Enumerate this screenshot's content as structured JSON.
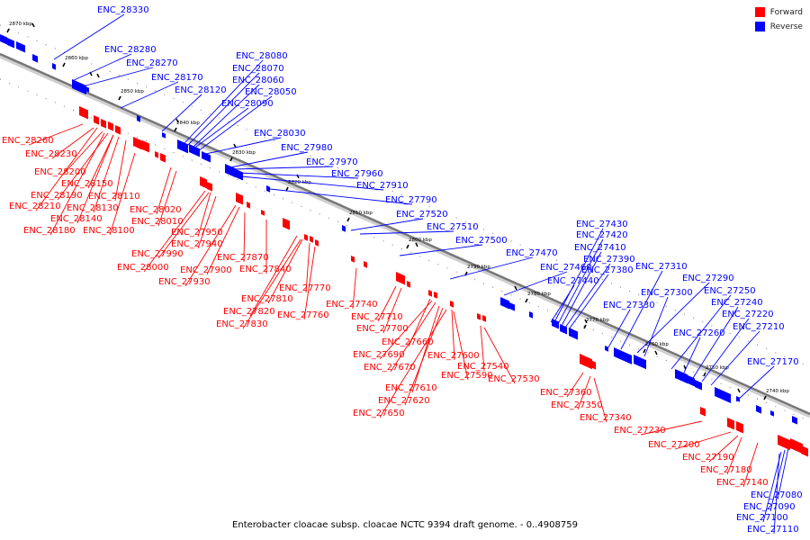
{
  "legend": {
    "forward_label": "Forward",
    "reverse_label": "Reverse",
    "forward_color": "#ff0000",
    "reverse_color": "#0000ff"
  },
  "caption": "Enterobacter cloacae subsp. cloacae NCTC 9394 draft genome. - 0..4908759",
  "ticks": [
    "2870 kbp",
    "2860 kbp",
    "2850 kbp",
    "2840 kbp",
    "2830 kbp",
    "2820 kbp",
    "2810 kbp",
    "2800 kbp",
    "2790 kbp",
    "2780 kbp",
    "2770 kbp",
    "2760 kbp",
    "2750 kbp",
    "2740 kbp"
  ],
  "reverse_genes": [
    "ENC_28330",
    "ENC_28280",
    "ENC_28270",
    "ENC_28170",
    "ENC_28120",
    "ENC_28080",
    "ENC_28070",
    "ENC_28060",
    "ENC_28050",
    "ENC_28090",
    "ENC_28030",
    "ENC_27980",
    "ENC_27970",
    "ENC_27960",
    "ENC_27910",
    "ENC_27790",
    "ENC_27520",
    "ENC_27510",
    "ENC_27500",
    "ENC_27470",
    "ENC_27460",
    "ENC_27430",
    "ENC_27420",
    "ENC_27410",
    "ENC_27390",
    "ENC_27380",
    "ENC_27440",
    "ENC_27310",
    "ENC_27290",
    "ENC_27300",
    "ENC_27330",
    "ENC_27250",
    "ENC_27240",
    "ENC_27220",
    "ENC_27210",
    "ENC_27260",
    "ENC_27170",
    "ENC_27080",
    "ENC_27090",
    "ENC_27100",
    "ENC_27110"
  ],
  "forward_genes": [
    "ENC_28260",
    "ENC_28230",
    "ENC_28200",
    "ENC_28150",
    "ENC_28190",
    "ENC_28110",
    "ENC_28210",
    "ENC_28130",
    "ENC_28140",
    "ENC_28020",
    "ENC_28180",
    "ENC_28100",
    "ENC_28010",
    "ENC_27950",
    "ENC_27940",
    "ENC_27990",
    "ENC_27870",
    "ENC_28000",
    "ENC_27900",
    "ENC_27840",
    "ENC_27930",
    "ENC_27770",
    "ENC_27810",
    "ENC_27740",
    "ENC_27820",
    "ENC_27760",
    "ENC_27830",
    "ENC_27710",
    "ENC_27700",
    "ENC_27660",
    "ENC_27690",
    "ENC_27600",
    "ENC_27670",
    "ENC_27590",
    "ENC_27540",
    "ENC_27610",
    "ENC_27530",
    "ENC_27620",
    "ENC_27360",
    "ENC_27650",
    "ENC_27350",
    "ENC_27340",
    "ENC_27230",
    "ENC_27200",
    "ENC_27190",
    "ENC_27180",
    "ENC_27140"
  ]
}
